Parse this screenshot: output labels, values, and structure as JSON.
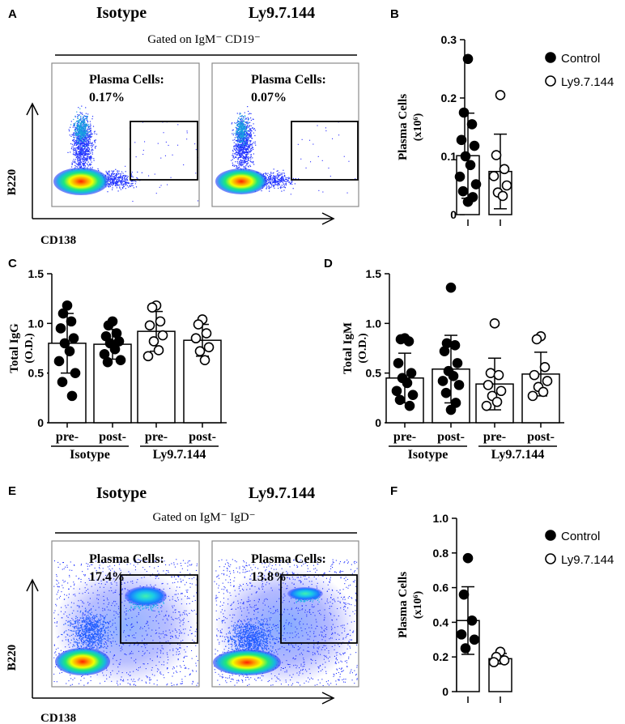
{
  "panels": {
    "A": {
      "letter": "A",
      "left_title": "Isotype",
      "right_title": "Ly9.7.144",
      "gate_text": "Gated on IgM⁻ CD19⁻",
      "gate_label": "Plasma Cells:",
      "left_pct": "0.17%",
      "right_pct": "0.07%",
      "y_axis": "B220",
      "x_axis": "CD138"
    },
    "E": {
      "letter": "E",
      "left_title": "Isotype",
      "right_title": "Ly9.7.144",
      "gate_text": "Gated on IgM⁻ IgD⁻",
      "gate_label": "Plasma Cells:",
      "left_pct": "17.4%",
      "right_pct": "13.8%",
      "y_axis": "B220",
      "x_axis": "CD138"
    }
  },
  "legend": {
    "control": "Control",
    "treated": "Ly9.7.144"
  },
  "chart_data": [
    {
      "id": "B",
      "type": "scatter",
      "letter": "B",
      "ylabel_line1": "Plasma Cells",
      "ylabel_line2": "(x10⁶)",
      "ylim": [
        0,
        0.3
      ],
      "ticks": [
        "0",
        "0.1",
        "0.2",
        "0.3"
      ],
      "tick_values": [
        0,
        0.1,
        0.2,
        0.3
      ],
      "groups": [
        {
          "name": "Control",
          "filled": true,
          "mean": 0.101,
          "sd": 0.073,
          "points": [
            0.267,
            0.175,
            0.155,
            0.128,
            0.118,
            0.1,
            0.085,
            0.065,
            0.052,
            0.04,
            0.03,
            0.022
          ]
        },
        {
          "name": "Ly9.7.144",
          "filled": false,
          "mean": 0.074,
          "sd": 0.064,
          "points": [
            0.205,
            0.102,
            0.078,
            0.066,
            0.05,
            0.038,
            0.032
          ]
        }
      ],
      "group_labels": [],
      "group_names": []
    },
    {
      "id": "C",
      "type": "scatter",
      "letter": "C",
      "ylabel_line1": "Total IgG",
      "ylabel_line2": "(O.D.)",
      "ylim": [
        0,
        1.5
      ],
      "ticks": [
        "0",
        "0.5",
        "1.0",
        "1.5"
      ],
      "tick_values": [
        0,
        0.5,
        1.0,
        1.5
      ],
      "groups": [
        {
          "name": "Isotype pre-",
          "filled": true,
          "mean": 0.8,
          "sd": 0.3,
          "points": [
            1.18,
            1.1,
            1.02,
            0.95,
            0.85,
            0.8,
            0.72,
            0.62,
            0.5,
            0.41,
            0.27
          ]
        },
        {
          "name": "Isotype post-",
          "filled": true,
          "mean": 0.79,
          "sd": 0.15,
          "points": [
            1.02,
            0.98,
            0.9,
            0.87,
            0.82,
            0.8,
            0.74,
            0.69,
            0.63,
            0.61
          ]
        },
        {
          "name": "Ly9.7.144 pre-",
          "filled": false,
          "mean": 0.92,
          "sd": 0.2,
          "points": [
            1.18,
            1.16,
            1.02,
            0.98,
            0.88,
            0.82,
            0.73,
            0.67
          ]
        },
        {
          "name": "Ly9.7.144 post-",
          "filled": false,
          "mean": 0.83,
          "sd": 0.16,
          "points": [
            1.04,
            0.99,
            0.9,
            0.85,
            0.76,
            0.72,
            0.63
          ]
        }
      ],
      "group_labels": [
        "pre-",
        "post-",
        "pre-",
        "post-"
      ],
      "group_names": [
        "Isotype",
        "Ly9.7.144"
      ]
    },
    {
      "id": "D",
      "type": "scatter",
      "letter": "D",
      "ylabel_line1": "Total IgM",
      "ylabel_line2": "(O.D.)",
      "ylim": [
        0,
        1.5
      ],
      "ticks": [
        "0",
        "0.5",
        "1.0",
        "1.5"
      ],
      "tick_values": [
        0,
        0.5,
        1.0,
        1.5
      ],
      "groups": [
        {
          "name": "Isotype pre-",
          "filled": true,
          "mean": 0.45,
          "sd": 0.25,
          "points": [
            0.85,
            0.84,
            0.82,
            0.6,
            0.5,
            0.45,
            0.4,
            0.32,
            0.28,
            0.23,
            0.17
          ]
        },
        {
          "name": "Isotype post-",
          "filled": true,
          "mean": 0.54,
          "sd": 0.34,
          "points": [
            1.36,
            0.8,
            0.78,
            0.72,
            0.6,
            0.52,
            0.47,
            0.42,
            0.38,
            0.3,
            0.2,
            0.13
          ]
        },
        {
          "name": "Ly9.7.144 pre-",
          "filled": false,
          "mean": 0.39,
          "sd": 0.26,
          "points": [
            1.0,
            0.5,
            0.48,
            0.38,
            0.32,
            0.27,
            0.21,
            0.17
          ]
        },
        {
          "name": "Ly9.7.144 post-",
          "filled": false,
          "mean": 0.49,
          "sd": 0.22,
          "points": [
            0.87,
            0.84,
            0.56,
            0.48,
            0.42,
            0.36,
            0.31,
            0.27
          ]
        }
      ],
      "group_labels": [
        "pre-",
        "post-",
        "pre-",
        "post-"
      ],
      "group_names": [
        "Isotype",
        "Ly9.7.144"
      ]
    },
    {
      "id": "F",
      "type": "scatter",
      "letter": "F",
      "ylabel_line1": "Plasma Cells",
      "ylabel_line2": "(x10⁶)",
      "ylim": [
        0,
        1.0
      ],
      "ticks": [
        "0",
        "0.2",
        "0.4",
        "0.6",
        "0.8",
        "1.0"
      ],
      "tick_values": [
        0,
        0.2,
        0.4,
        0.6,
        0.8,
        1.0
      ],
      "groups": [
        {
          "name": "Control",
          "filled": true,
          "mean": 0.41,
          "sd": 0.195,
          "points": [
            0.77,
            0.56,
            0.41,
            0.33,
            0.3,
            0.25
          ]
        },
        {
          "name": "Ly9.7.144",
          "filled": false,
          "mean": 0.19,
          "sd": 0.03,
          "points": [
            0.23,
            0.2,
            0.18,
            0.17
          ]
        }
      ],
      "group_labels": [],
      "group_names": []
    }
  ]
}
